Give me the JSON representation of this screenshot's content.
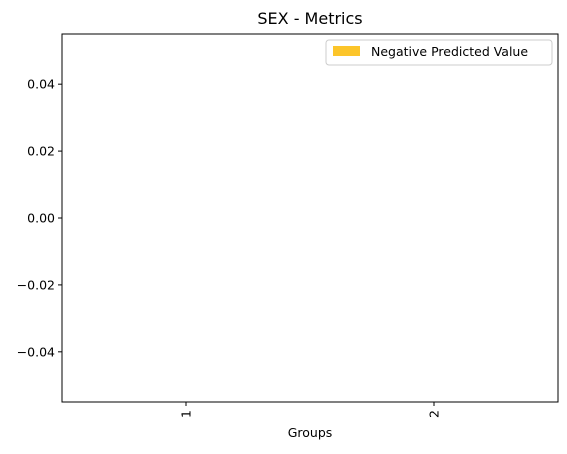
{
  "chart_data": {
    "type": "bar",
    "title": "SEX - Metrics",
    "xlabel": "Groups",
    "ylabel": "",
    "categories": [
      "1",
      "2"
    ],
    "series": [
      {
        "name": "Negative Predicted Value",
        "values": [
          0,
          0
        ],
        "color": "#fcc52a"
      }
    ],
    "ylim": [
      -0.055,
      0.055
    ],
    "yticks": [
      {
        "value": 0.04,
        "label": "0.04"
      },
      {
        "value": 0.02,
        "label": "0.02"
      },
      {
        "value": 0.0,
        "label": "0.00"
      },
      {
        "value": -0.02,
        "label": "−0.02"
      },
      {
        "value": -0.04,
        "label": "−0.04"
      }
    ],
    "xtick_rotation": "vertical",
    "grid": false,
    "legend": {
      "position": "top-right",
      "entries": [
        {
          "label": "Negative Predicted Value",
          "color": "#fcc52a"
        }
      ]
    }
  }
}
